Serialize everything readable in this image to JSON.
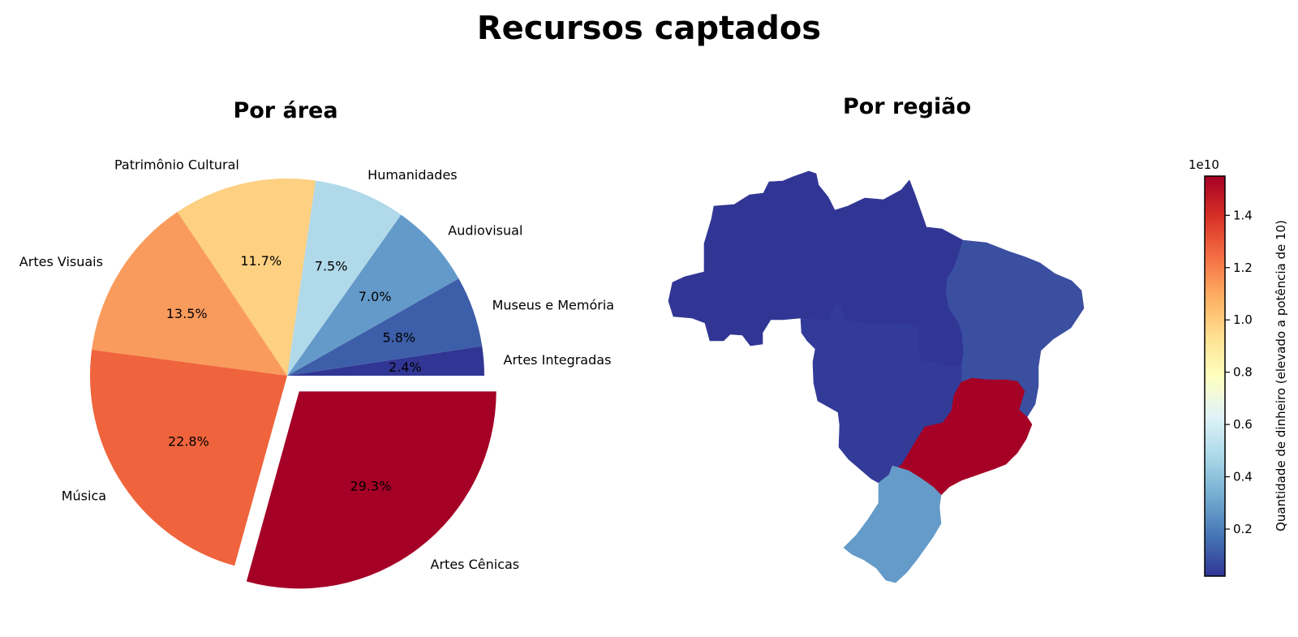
{
  "title": "Recursos captados",
  "chart_data": [
    {
      "type": "pie",
      "title": "Por área",
      "slices": [
        {
          "label": "Artes Integradas",
          "pct_label": "2.4%",
          "value": 2.4,
          "color": "#313695",
          "explode": false
        },
        {
          "label": "Museus e Memória",
          "pct_label": "5.8%",
          "value": 5.8,
          "color": "#3d5ea8",
          "explode": false
        },
        {
          "label": "Audiovisual",
          "pct_label": "7.0%",
          "value": 7.0,
          "color": "#649ac9",
          "explode": false
        },
        {
          "label": "Humanidades",
          "pct_label": "7.5%",
          "value": 7.5,
          "color": "#b0d9ea",
          "explode": false
        },
        {
          "label": "Patrimônio Cultural",
          "pct_label": "11.7%",
          "value": 11.7,
          "color": "#fdd082",
          "explode": false
        },
        {
          "label": "Artes Visuais",
          "pct_label": "13.5%",
          "value": 13.5,
          "color": "#f99b5c",
          "explode": false
        },
        {
          "label": "Música",
          "pct_label": "22.8%",
          "value": 22.8,
          "color": "#ef643d",
          "explode": false
        },
        {
          "label": "Artes Cênicas",
          "pct_label": "29.3%",
          "value": 29.3,
          "color": "#a50026",
          "explode": true
        }
      ],
      "start_angle_deg": 0,
      "direction": "counterclockwise"
    },
    {
      "type": "heatmap",
      "subtype": "choropleth",
      "title": "Por região",
      "regions": [
        {
          "name": "Norte",
          "value": 0.05,
          "color": "#313695"
        },
        {
          "name": "Nordeste",
          "value": 0.12,
          "color": "#3a4fa0"
        },
        {
          "name": "Centro-Oeste",
          "value": 0.06,
          "color": "#323b98"
        },
        {
          "name": "Sudeste",
          "value": 1.54,
          "color": "#a50026"
        },
        {
          "name": "Sul",
          "value": 0.35,
          "color": "#659bc9"
        }
      ],
      "colorbar": {
        "multiplier_label": "1e10",
        "label": "Quantidade de dinheiro (elevado a potência de 10)",
        "range": [
          0.02,
          1.55
        ],
        "ticks": [
          0.2,
          0.4,
          0.6,
          0.8,
          1.0,
          1.2,
          1.4
        ],
        "tick_labels": [
          "0.2",
          "0.4",
          "0.6",
          "0.8",
          "1.0",
          "1.2",
          "1.4"
        ],
        "colormap": "RdYlBu_r",
        "stops": [
          "#313695",
          "#4575b4",
          "#74add1",
          "#abd9e9",
          "#e0f3f8",
          "#ffffbf",
          "#fee090",
          "#fdae61",
          "#f46d43",
          "#d73027",
          "#a50026"
        ]
      }
    }
  ]
}
